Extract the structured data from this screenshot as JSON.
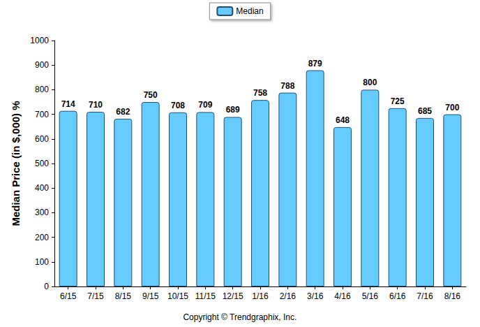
{
  "chart_data": {
    "type": "bar",
    "y_label": "Median Price (in $,000) %",
    "annotations": [
      "Copyright © Trendgraphix, Inc."
    ],
    "categories": [
      "6/15",
      "7/15",
      "8/15",
      "9/15",
      "10/15",
      "11/15",
      "12/15",
      "1/16",
      "2/16",
      "3/16",
      "4/16",
      "5/16",
      "6/16",
      "7/16",
      "8/16"
    ],
    "series": [
      {
        "name": "Median",
        "color": "#66ccff",
        "values": [
          714,
          710,
          682,
          750,
          708,
          709,
          689,
          758,
          788,
          879,
          648,
          800,
          725,
          685,
          700
        ]
      }
    ],
    "ylim": [
      0,
      1000
    ],
    "yticks": [
      0,
      100,
      200,
      300,
      400,
      500,
      600,
      700,
      800,
      900,
      1000
    ],
    "grid": false,
    "legend": "top",
    "data_labels": true
  }
}
